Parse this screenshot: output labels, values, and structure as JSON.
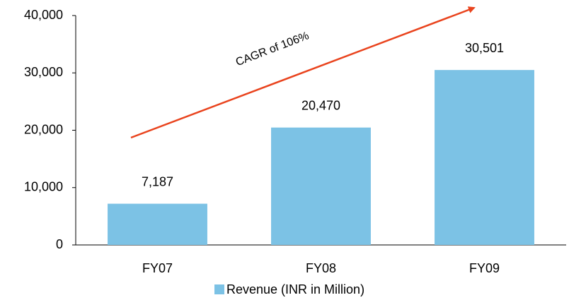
{
  "chart_data": {
    "type": "bar",
    "annotation": "CAGR of 106%",
    "categories": [
      "FY07",
      "FY08",
      "FY09"
    ],
    "series": [
      {
        "name": "Revenue (INR in Million)",
        "color": "#7cc2e5",
        "values": [
          7187,
          20470,
          30501
        ],
        "value_labels": [
          "7,187",
          "20,470",
          "30,501"
        ]
      }
    ],
    "ylim": [
      0,
      40000
    ],
    "yticks": [
      0,
      {
        "value": 10000,
        "label": "10,000"
      },
      {
        "value": 20000,
        "label": "20,000"
      },
      {
        "value": 30000,
        "label": "30,000"
      },
      {
        "value": 40000,
        "label": "40,000"
      }
    ],
    "grid": false,
    "legend": "bottom"
  }
}
